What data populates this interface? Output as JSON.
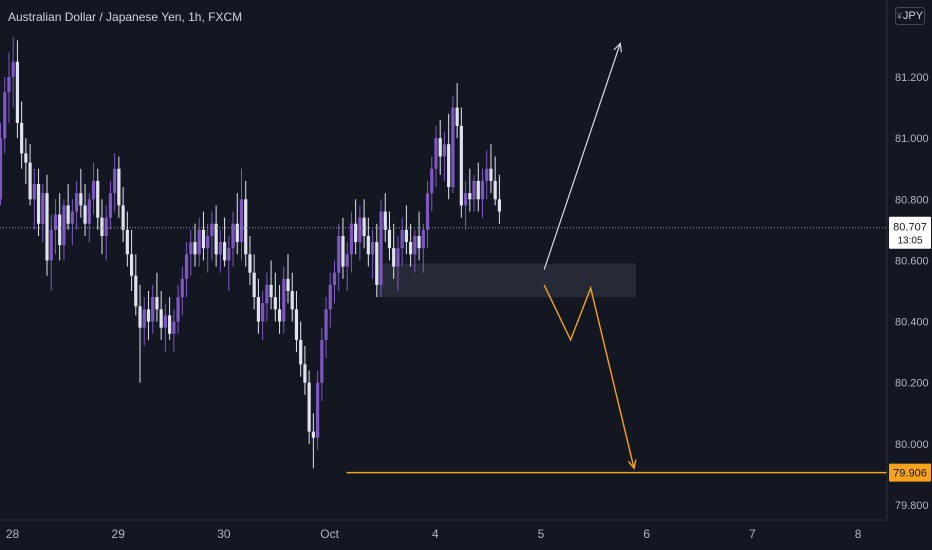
{
  "title": "Australian Dollar / Japanese Yen, 1h, FXCM",
  "currency_badge": "JPY",
  "chart_data": {
    "type": "candlestick",
    "title": "Australian Dollar / Japanese Yen, 1h, FXCM",
    "x_ticks": [
      "28",
      "29",
      "30",
      "Oct",
      "4",
      "5",
      "6",
      "7",
      "8"
    ],
    "y_ticks": [
      "81.200",
      "81.000",
      "80.800",
      "80.600",
      "80.400",
      "80.200",
      "80.000",
      "79.800"
    ],
    "ylim": [
      79.75,
      81.42
    ],
    "current_price": {
      "value": 80.707,
      "label": "80.707",
      "countdown": "13:05"
    },
    "target_price": {
      "value": 79.906,
      "label": "79.906"
    },
    "zone": {
      "from_day": 3.45,
      "to_day": 5.9,
      "low": 80.48,
      "high": 80.59
    },
    "bull_arrow": [
      [
        5.03,
        80.57
      ],
      [
        5.75,
        81.31
      ]
    ],
    "bear_path": [
      [
        5.03,
        80.52
      ],
      [
        5.28,
        80.34
      ],
      [
        5.47,
        80.51
      ],
      [
        5.88,
        79.92
      ]
    ],
    "target_line_from_day": 3.16,
    "colors": {
      "up": "#7e57c2",
      "down": "#e0e3eb",
      "target": "#f7a21b",
      "arrow": "#d9dbe2",
      "zone": "#2a2e39"
    },
    "series": [
      {
        "name": "Sep 28",
        "day": 0,
        "ohlc": [
          [
            80.8,
            81.05,
            80.78,
            81.0
          ],
          [
            81.0,
            81.2,
            80.95,
            81.15
          ],
          [
            81.15,
            81.28,
            81.05,
            81.2
          ],
          [
            81.2,
            81.33,
            81.1,
            81.25
          ],
          [
            81.25,
            81.32,
            81.0,
            81.05
          ],
          [
            81.05,
            81.12,
            80.9,
            80.95
          ],
          [
            80.95,
            81.0,
            80.85,
            80.92
          ],
          [
            80.92,
            80.98,
            80.78,
            80.8
          ],
          [
            80.8,
            80.9,
            80.7,
            80.85
          ],
          [
            80.85,
            80.9,
            80.68,
            80.72
          ],
          [
            80.72,
            80.85,
            80.66,
            80.82
          ],
          [
            80.82,
            80.88,
            80.55,
            80.6
          ],
          [
            80.6,
            80.75,
            80.5,
            80.7
          ],
          [
            80.7,
            80.8,
            80.62,
            80.75
          ],
          [
            80.75,
            80.82,
            80.6,
            80.65
          ],
          [
            80.65,
            80.8,
            80.6,
            80.78
          ],
          [
            80.78,
            80.85,
            80.7,
            80.72
          ],
          [
            80.72,
            80.8,
            80.65,
            80.76
          ],
          [
            80.76,
            80.86,
            80.7,
            80.82
          ],
          [
            80.82,
            80.9,
            80.74,
            80.78
          ],
          [
            80.78,
            80.85,
            80.68,
            80.72
          ],
          [
            80.72,
            80.82,
            80.66,
            80.8
          ],
          [
            80.8,
            80.92,
            80.75,
            80.86
          ],
          [
            80.86,
            80.9,
            80.7,
            80.74
          ],
          [
            80.74,
            80.8,
            80.62,
            80.68
          ]
        ]
      },
      {
        "name": "Sep 29",
        "day": 1,
        "ohlc": [
          [
            80.68,
            80.78,
            80.6,
            80.74
          ],
          [
            80.74,
            80.86,
            80.7,
            80.82
          ],
          [
            80.82,
            80.95,
            80.76,
            80.9
          ],
          [
            80.9,
            80.94,
            80.74,
            80.78
          ],
          [
            80.78,
            80.84,
            80.66,
            80.7
          ],
          [
            80.7,
            80.76,
            80.58,
            80.62
          ],
          [
            80.62,
            80.7,
            80.5,
            80.55
          ],
          [
            80.55,
            80.62,
            80.42,
            80.45
          ],
          [
            80.45,
            80.52,
            80.2,
            80.38
          ],
          [
            80.38,
            80.48,
            80.32,
            80.44
          ],
          [
            80.44,
            80.5,
            80.34,
            80.4
          ],
          [
            80.4,
            80.52,
            80.36,
            80.48
          ],
          [
            80.48,
            80.56,
            80.4,
            80.44
          ],
          [
            80.44,
            80.5,
            80.34,
            80.38
          ],
          [
            80.38,
            80.46,
            80.3,
            80.42
          ],
          [
            80.42,
            80.48,
            80.34,
            80.36
          ],
          [
            80.36,
            80.44,
            80.3,
            80.4
          ],
          [
            80.4,
            80.52,
            80.36,
            80.48
          ],
          [
            80.48,
            80.58,
            80.42,
            80.54
          ],
          [
            80.54,
            80.66,
            80.48,
            80.62
          ],
          [
            80.62,
            80.7,
            80.55,
            80.66
          ],
          [
            80.66,
            80.72,
            80.58,
            80.62
          ],
          [
            80.62,
            80.74,
            80.58,
            80.7
          ],
          [
            80.7,
            80.76,
            80.6,
            80.64
          ],
          [
            80.64,
            80.72,
            80.56,
            80.68
          ]
        ]
      },
      {
        "name": "Sep 30",
        "day": 2,
        "ohlc": [
          [
            80.68,
            80.76,
            80.6,
            80.72
          ],
          [
            80.72,
            80.78,
            80.58,
            80.62
          ],
          [
            80.62,
            80.7,
            80.56,
            80.66
          ],
          [
            80.66,
            80.74,
            80.58,
            80.6
          ],
          [
            80.6,
            80.68,
            80.5,
            80.64
          ],
          [
            80.64,
            80.76,
            80.58,
            80.72
          ],
          [
            80.72,
            80.82,
            80.62,
            80.66
          ],
          [
            80.66,
            80.9,
            80.6,
            80.8
          ],
          [
            80.8,
            80.86,
            80.58,
            80.62
          ],
          [
            80.62,
            80.68,
            80.52,
            80.56
          ],
          [
            80.56,
            80.62,
            80.44,
            80.48
          ],
          [
            80.48,
            80.54,
            80.36,
            80.4
          ],
          [
            80.4,
            80.5,
            80.34,
            80.46
          ],
          [
            80.46,
            80.56,
            80.4,
            80.52
          ],
          [
            80.52,
            80.6,
            80.44,
            80.48
          ],
          [
            80.48,
            80.56,
            80.4,
            80.44
          ],
          [
            80.44,
            80.52,
            80.36,
            80.4
          ],
          [
            80.4,
            80.58,
            80.36,
            80.54
          ],
          [
            80.54,
            80.62,
            80.46,
            80.5
          ],
          [
            80.5,
            80.56,
            80.4,
            80.44
          ],
          [
            80.44,
            80.5,
            80.3,
            80.34
          ],
          [
            80.34,
            80.4,
            80.22,
            80.26
          ],
          [
            80.26,
            80.32,
            80.16,
            80.2
          ],
          [
            80.2,
            80.24,
            80.0,
            80.04
          ],
          [
            80.04,
            80.1,
            79.92,
            80.02
          ]
        ]
      },
      {
        "name": "Oct",
        "day": 3,
        "ohlc": [
          [
            80.02,
            80.24,
            79.98,
            80.2
          ],
          [
            80.2,
            80.38,
            80.14,
            80.34
          ],
          [
            80.34,
            80.48,
            80.28,
            80.44
          ],
          [
            80.44,
            80.56,
            80.38,
            80.52
          ],
          [
            80.52,
            80.6,
            80.46,
            80.56
          ],
          [
            80.56,
            80.72,
            80.5,
            80.68
          ],
          [
            80.68,
            80.74,
            80.54,
            80.58
          ],
          [
            80.58,
            80.66,
            80.5,
            80.62
          ],
          [
            80.62,
            80.76,
            80.56,
            80.72
          ],
          [
            80.72,
            80.8,
            80.62,
            80.66
          ],
          [
            80.66,
            80.78,
            80.6,
            80.74
          ],
          [
            80.74,
            80.8,
            80.64,
            80.68
          ],
          [
            80.68,
            80.74,
            80.58,
            80.62
          ],
          [
            80.62,
            80.7,
            80.54,
            80.66
          ],
          [
            80.66,
            80.72,
            80.48,
            80.52
          ],
          [
            80.52,
            80.8,
            80.48,
            80.76
          ],
          [
            80.76,
            80.82,
            80.66,
            80.7
          ],
          [
            80.7,
            80.76,
            80.6,
            80.64
          ],
          [
            80.64,
            80.72,
            80.54,
            80.58
          ],
          [
            80.58,
            80.68,
            80.5,
            80.64
          ],
          [
            80.64,
            80.74,
            80.58,
            80.7
          ],
          [
            80.7,
            80.78,
            80.62,
            80.66
          ],
          [
            80.66,
            80.72,
            80.58,
            80.62
          ],
          [
            80.62,
            80.7,
            80.56,
            80.68
          ],
          [
            80.68,
            80.76,
            80.6,
            80.64
          ]
        ]
      },
      {
        "name": "Oct 4",
        "day": 4,
        "ohlc": [
          [
            80.64,
            80.72,
            80.56,
            80.7
          ],
          [
            80.7,
            80.86,
            80.64,
            80.82
          ],
          [
            80.82,
            80.94,
            80.76,
            80.9
          ],
          [
            80.9,
            81.04,
            80.84,
            81.0
          ],
          [
            81.0,
            81.06,
            80.88,
            80.94
          ],
          [
            80.94,
            81.02,
            80.86,
            80.98
          ],
          [
            80.98,
            81.08,
            80.8,
            80.84
          ],
          [
            80.84,
            81.14,
            80.82,
            81.1
          ],
          [
            81.1,
            81.18,
            81.0,
            81.04
          ],
          [
            81.04,
            81.1,
            80.74,
            80.78
          ],
          [
            80.78,
            80.86,
            80.7,
            80.82
          ],
          [
            80.82,
            80.9,
            80.76,
            80.8
          ],
          [
            80.8,
            80.88,
            80.76,
            80.86
          ],
          [
            80.86,
            80.92,
            80.76,
            80.8
          ],
          [
            80.8,
            80.9,
            80.74,
            80.86
          ],
          [
            80.86,
            80.96,
            80.8,
            80.9
          ],
          [
            80.9,
            80.98,
            80.82,
            80.86
          ],
          [
            80.86,
            80.94,
            80.78,
            80.8
          ],
          [
            80.8,
            80.88,
            80.72,
            80.76
          ]
        ]
      }
    ]
  }
}
